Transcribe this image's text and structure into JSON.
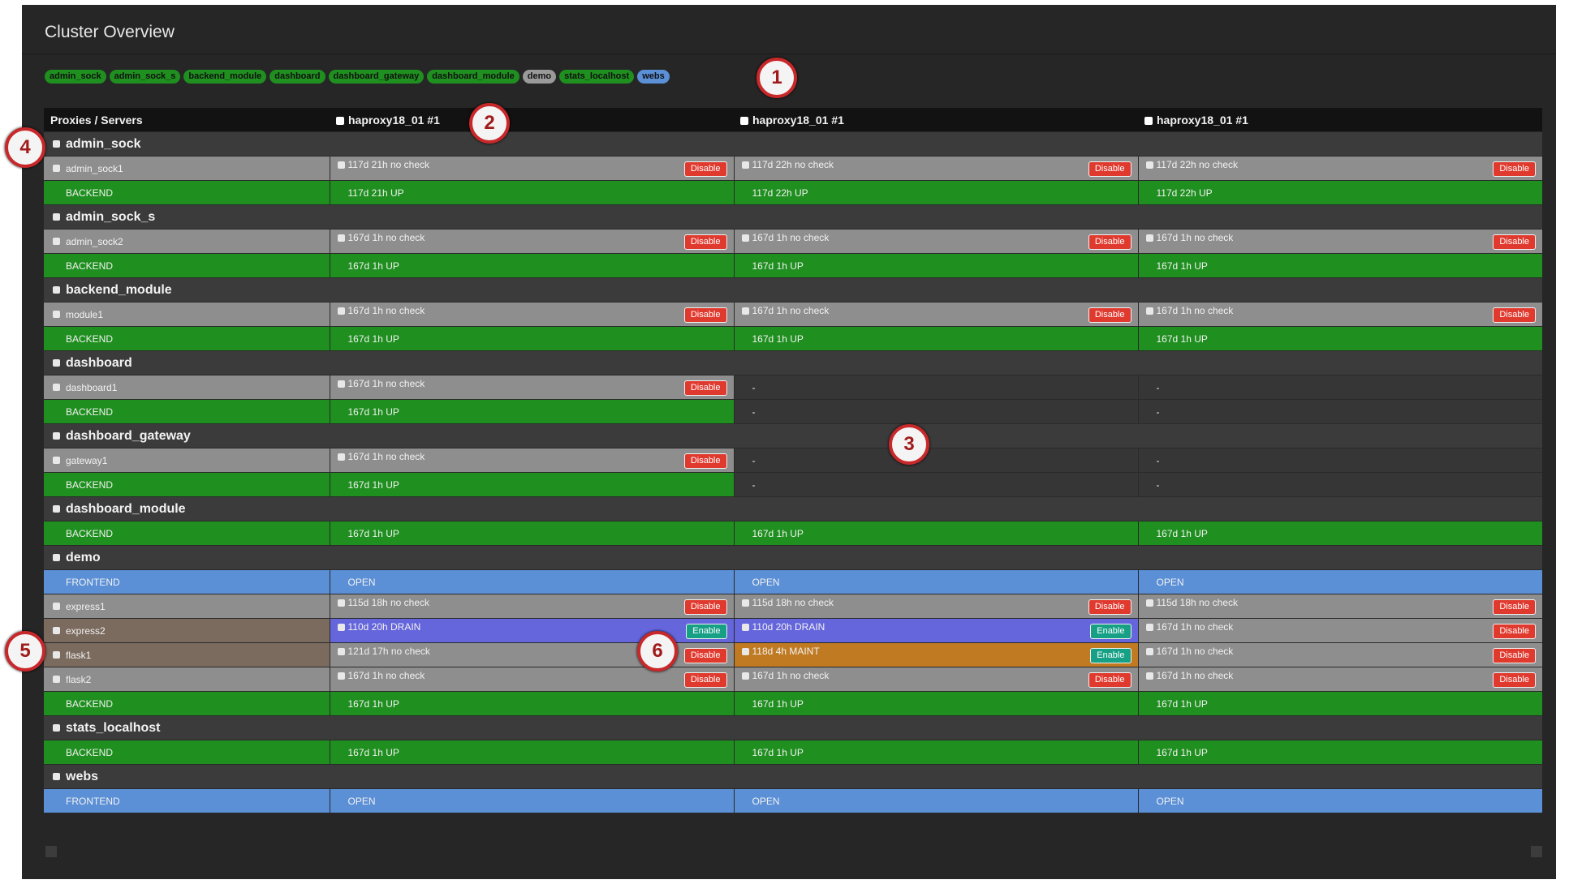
{
  "header": {
    "title": "Cluster Overview"
  },
  "tags": [
    {
      "label": "admin_sock",
      "color": "#1f8f1f"
    },
    {
      "label": "admin_sock_s",
      "color": "#1f8f1f"
    },
    {
      "label": "backend_module",
      "color": "#1f8f1f"
    },
    {
      "label": "dashboard",
      "color": "#1f8f1f"
    },
    {
      "label": "dashboard_gateway",
      "color": "#1f8f1f"
    },
    {
      "label": "dashboard_module",
      "color": "#1f8f1f"
    },
    {
      "label": "demo",
      "color": "#9a9a9a"
    },
    {
      "label": "stats_localhost",
      "color": "#1f8f1f"
    },
    {
      "label": "webs",
      "color": "#5b8fd6"
    }
  ],
  "callouts": [
    "1",
    "2",
    "3",
    "4",
    "5",
    "6"
  ],
  "table": {
    "corner": "Proxies / Servers",
    "columns": [
      "haproxy18_01 #1",
      "haproxy18_01 #1",
      "haproxy18_01 #1"
    ],
    "groups": [
      {
        "name": "admin_sock",
        "rows": [
          {
            "label": "admin_sock1",
            "color": "#8e8e8e",
            "cells": [
              {
                "text": "117d 21h no check",
                "color": "#8e8e8e",
                "button": "Disable",
                "button_color": "#e03a2f"
              },
              {
                "text": "117d 22h no check",
                "color": "#8e8e8e",
                "button": "Disable",
                "button_color": "#e03a2f"
              },
              {
                "text": "117d 22h no check",
                "color": "#8e8e8e",
                "button": "Disable",
                "button_color": "#e03a2f"
              }
            ]
          },
          {
            "label": "BACKEND",
            "color": "#1f8f1f",
            "cells": [
              {
                "text": "117d 21h UP",
                "color": "#1f8f1f"
              },
              {
                "text": "117d 22h UP",
                "color": "#1f8f1f"
              },
              {
                "text": "117d 22h UP",
                "color": "#1f8f1f"
              }
            ]
          }
        ]
      },
      {
        "name": "admin_sock_s",
        "rows": [
          {
            "label": "admin_sock2",
            "color": "#8e8e8e",
            "cells": [
              {
                "text": "167d 1h no check",
                "color": "#8e8e8e",
                "button": "Disable",
                "button_color": "#e03a2f"
              },
              {
                "text": "167d 1h no check",
                "color": "#8e8e8e",
                "button": "Disable",
                "button_color": "#e03a2f"
              },
              {
                "text": "167d 1h no check",
                "color": "#8e8e8e",
                "button": "Disable",
                "button_color": "#e03a2f"
              }
            ]
          },
          {
            "label": "BACKEND",
            "color": "#1f8f1f",
            "cells": [
              {
                "text": "167d 1h UP",
                "color": "#1f8f1f"
              },
              {
                "text": "167d 1h UP",
                "color": "#1f8f1f"
              },
              {
                "text": "167d 1h UP",
                "color": "#1f8f1f"
              }
            ]
          }
        ]
      },
      {
        "name": "backend_module",
        "rows": [
          {
            "label": "module1",
            "color": "#8e8e8e",
            "cells": [
              {
                "text": "167d 1h no check",
                "color": "#8e8e8e",
                "button": "Disable",
                "button_color": "#e03a2f"
              },
              {
                "text": "167d 1h no check",
                "color": "#8e8e8e",
                "button": "Disable",
                "button_color": "#e03a2f"
              },
              {
                "text": "167d 1h no check",
                "color": "#8e8e8e",
                "button": "Disable",
                "button_color": "#e03a2f"
              }
            ]
          },
          {
            "label": "BACKEND",
            "color": "#1f8f1f",
            "cells": [
              {
                "text": "167d 1h UP",
                "color": "#1f8f1f"
              },
              {
                "text": "167d 1h UP",
                "color": "#1f8f1f"
              },
              {
                "text": "167d 1h UP",
                "color": "#1f8f1f"
              }
            ]
          }
        ]
      },
      {
        "name": "dashboard",
        "rows": [
          {
            "label": "dashboard1",
            "color": "#8e8e8e",
            "cells": [
              {
                "text": "167d 1h no check",
                "color": "#8e8e8e",
                "button": "Disable",
                "button_color": "#e03a2f"
              },
              {
                "text": "-",
                "color": "#363636"
              },
              {
                "text": "-",
                "color": "#363636"
              }
            ]
          },
          {
            "label": "BACKEND",
            "color": "#1f8f1f",
            "cells": [
              {
                "text": "167d 1h UP",
                "color": "#1f8f1f"
              },
              {
                "text": "-",
                "color": "#363636"
              },
              {
                "text": "-",
                "color": "#363636"
              }
            ]
          }
        ]
      },
      {
        "name": "dashboard_gateway",
        "rows": [
          {
            "label": "gateway1",
            "color": "#8e8e8e",
            "cells": [
              {
                "text": "167d 1h no check",
                "color": "#8e8e8e",
                "button": "Disable",
                "button_color": "#e03a2f"
              },
              {
                "text": "-",
                "color": "#363636"
              },
              {
                "text": "-",
                "color": "#363636"
              }
            ]
          },
          {
            "label": "BACKEND",
            "color": "#1f8f1f",
            "cells": [
              {
                "text": "167d 1h UP",
                "color": "#1f8f1f"
              },
              {
                "text": "-",
                "color": "#363636"
              },
              {
                "text": "-",
                "color": "#363636"
              }
            ]
          }
        ]
      },
      {
        "name": "dashboard_module",
        "rows": [
          {
            "label": "BACKEND",
            "color": "#1f8f1f",
            "cells": [
              {
                "text": "167d 1h UP",
                "color": "#1f8f1f"
              },
              {
                "text": "167d 1h UP",
                "color": "#1f8f1f"
              },
              {
                "text": "167d 1h UP",
                "color": "#1f8f1f"
              }
            ]
          }
        ]
      },
      {
        "name": "demo",
        "rows": [
          {
            "label": "FRONTEND",
            "color": "#5b8fd6",
            "cells": [
              {
                "text": "OPEN",
                "color": "#5b8fd6"
              },
              {
                "text": "OPEN",
                "color": "#5b8fd6"
              },
              {
                "text": "OPEN",
                "color": "#5b8fd6"
              }
            ]
          },
          {
            "label": "express1",
            "color": "#8e8e8e",
            "cells": [
              {
                "text": "115d 18h no check",
                "color": "#8e8e8e",
                "button": "Disable",
                "button_color": "#e03a2f"
              },
              {
                "text": "115d 18h no check",
                "color": "#8e8e8e",
                "button": "Disable",
                "button_color": "#e03a2f"
              },
              {
                "text": "115d 18h no check",
                "color": "#8e8e8e",
                "button": "Disable",
                "button_color": "#e03a2f"
              }
            ]
          },
          {
            "label": "express2",
            "color": "#7b6a5e",
            "cells": [
              {
                "text": "110d 20h DRAIN",
                "color": "#6565dc",
                "button": "Enable",
                "button_color": "#16a085"
              },
              {
                "text": "110d 20h DRAIN",
                "color": "#6565dc",
                "button": "Enable",
                "button_color": "#16a085"
              },
              {
                "text": "167d 1h no check",
                "color": "#8e8e8e",
                "button": "Disable",
                "button_color": "#e03a2f"
              }
            ]
          },
          {
            "label": "flask1",
            "color": "#7b6a5e",
            "cells": [
              {
                "text": "121d 17h no check",
                "color": "#8e8e8e",
                "button": "Disable",
                "button_color": "#e03a2f"
              },
              {
                "text": "118d 4h MAINT",
                "color": "#c07a22",
                "button": "Enable",
                "button_color": "#16a085"
              },
              {
                "text": "167d 1h no check",
                "color": "#8e8e8e",
                "button": "Disable",
                "button_color": "#e03a2f"
              }
            ]
          },
          {
            "label": "flask2",
            "color": "#8e8e8e",
            "cells": [
              {
                "text": "167d 1h no check",
                "color": "#8e8e8e",
                "button": "Disable",
                "button_color": "#e03a2f"
              },
              {
                "text": "167d 1h no check",
                "color": "#8e8e8e",
                "button": "Disable",
                "button_color": "#e03a2f"
              },
              {
                "text": "167d 1h no check",
                "color": "#8e8e8e",
                "button": "Disable",
                "button_color": "#e03a2f"
              }
            ]
          },
          {
            "label": "BACKEND",
            "color": "#1f8f1f",
            "cells": [
              {
                "text": "167d 1h UP",
                "color": "#1f8f1f"
              },
              {
                "text": "167d 1h UP",
                "color": "#1f8f1f"
              },
              {
                "text": "167d 1h UP",
                "color": "#1f8f1f"
              }
            ]
          }
        ]
      },
      {
        "name": "stats_localhost",
        "rows": [
          {
            "label": "BACKEND",
            "color": "#1f8f1f",
            "cells": [
              {
                "text": "167d 1h UP",
                "color": "#1f8f1f"
              },
              {
                "text": "167d 1h UP",
                "color": "#1f8f1f"
              },
              {
                "text": "167d 1h UP",
                "color": "#1f8f1f"
              }
            ]
          }
        ]
      },
      {
        "name": "webs",
        "rows": [
          {
            "label": "FRONTEND",
            "color": "#5b8fd6",
            "cells": [
              {
                "text": "OPEN",
                "color": "#5b8fd6"
              },
              {
                "text": "OPEN",
                "color": "#5b8fd6"
              },
              {
                "text": "OPEN",
                "color": "#5b8fd6"
              }
            ]
          }
        ]
      }
    ]
  }
}
